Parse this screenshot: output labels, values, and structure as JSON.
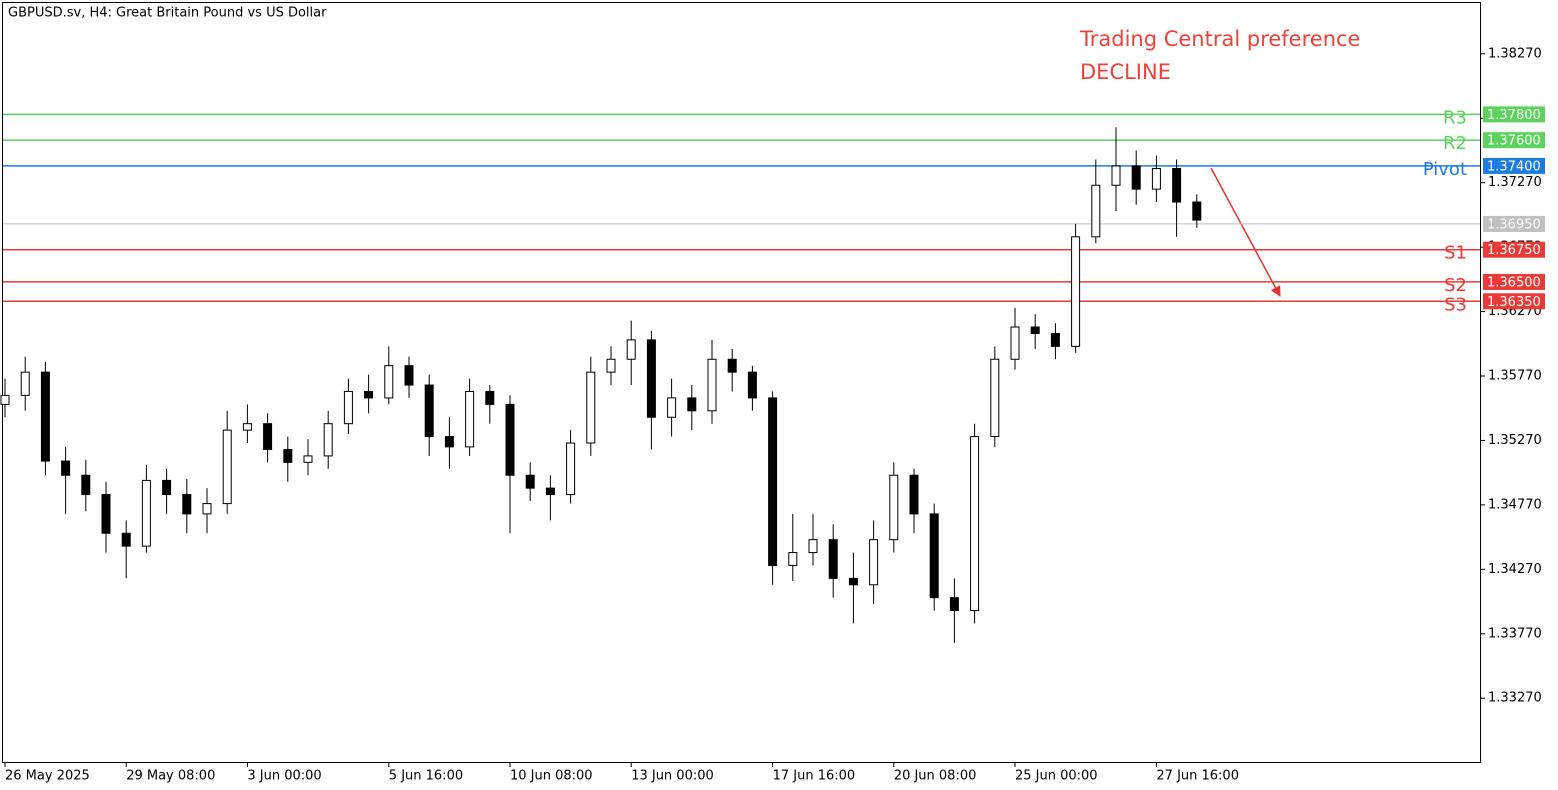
{
  "chart_data": {
    "type": "candlestick",
    "header": "GBPUSD.sv, H4:  Great Britain Pound vs US Dollar",
    "annotations": [
      "Trading Central preference",
      "DECLINE"
    ],
    "annotation_color": "#f0403a",
    "categories": [
      "26 May 2025",
      null,
      null,
      null,
      null,
      null,
      "29 May 08:00",
      null,
      null,
      null,
      null,
      null,
      "3 Jun 00:00",
      null,
      null,
      null,
      null,
      null,
      null,
      "5 Jun 16:00",
      null,
      null,
      null,
      null,
      null,
      "10 Jun 08:00",
      null,
      null,
      null,
      null,
      null,
      "13 Jun 00:00",
      null,
      null,
      null,
      null,
      null,
      null,
      "17 Jun 16:00",
      null,
      null,
      null,
      null,
      null,
      "20 Jun 08:00",
      null,
      null,
      null,
      null,
      null,
      "25 Jun 00:00",
      null,
      null,
      null,
      null,
      null,
      null,
      "27 Jun 16:00",
      null,
      null
    ],
    "open": [
      1.3555,
      1.3562,
      1.358,
      1.3511,
      1.35,
      1.3485,
      1.3455,
      1.3445,
      1.3496,
      1.3485,
      1.347,
      1.3478,
      1.3535,
      1.354,
      1.352,
      1.351,
      1.3515,
      1.354,
      1.3565,
      1.356,
      1.3585,
      1.357,
      1.353,
      1.3522,
      1.3565,
      1.3555,
      1.35,
      1.349,
      1.3485,
      1.3525,
      1.358,
      1.359,
      1.3605,
      1.3545,
      1.356,
      1.355,
      1.359,
      1.358,
      1.356,
      1.343,
      1.344,
      1.345,
      1.342,
      1.3415,
      1.345,
      1.35,
      1.347,
      1.3405,
      1.3395,
      1.353,
      1.359,
      1.3615,
      1.361,
      1.36,
      1.3685,
      1.3725,
      1.374,
      1.3722,
      1.3738,
      1.3712
    ],
    "high": [
      1.3575,
      1.3592,
      1.3588,
      1.3522,
      1.3512,
      1.3495,
      1.3465,
      1.3508,
      1.3505,
      1.3497,
      1.349,
      1.355,
      1.3555,
      1.3548,
      1.353,
      1.3528,
      1.355,
      1.3575,
      1.3578,
      1.36,
      1.3592,
      1.3578,
      1.3545,
      1.3575,
      1.357,
      1.3562,
      1.351,
      1.35,
      1.3535,
      1.3592,
      1.36,
      1.362,
      1.3612,
      1.3575,
      1.357,
      1.3605,
      1.3598,
      1.3585,
      1.3565,
      1.347,
      1.347,
      1.3462,
      1.344,
      1.3465,
      1.351,
      1.3505,
      1.3478,
      1.342,
      1.354,
      1.36,
      1.363,
      1.3625,
      1.3618,
      1.3695,
      1.3745,
      1.377,
      1.3752,
      1.3748,
      1.3745,
      1.3718
    ],
    "low": [
      1.3545,
      1.355,
      1.35,
      1.347,
      1.3472,
      1.344,
      1.342,
      1.344,
      1.347,
      1.3455,
      1.3455,
      1.347,
      1.3525,
      1.351,
      1.3495,
      1.35,
      1.3505,
      1.3532,
      1.3548,
      1.3555,
      1.356,
      1.3515,
      1.3505,
      1.3515,
      1.354,
      1.3455,
      1.348,
      1.3465,
      1.3478,
      1.3515,
      1.357,
      1.357,
      1.352,
      1.353,
      1.3535,
      1.354,
      1.3565,
      1.355,
      1.3415,
      1.3418,
      1.343,
      1.3405,
      1.3385,
      1.34,
      1.344,
      1.3455,
      1.3395,
      1.337,
      1.3385,
      1.3522,
      1.3582,
      1.3598,
      1.359,
      1.3595,
      1.368,
      1.3705,
      1.371,
      1.3712,
      1.3685,
      1.3692
    ],
    "close": [
      1.3562,
      1.358,
      1.3511,
      1.35,
      1.3485,
      1.3455,
      1.3445,
      1.3496,
      1.3485,
      1.347,
      1.3478,
      1.3535,
      1.354,
      1.352,
      1.351,
      1.3515,
      1.354,
      1.3565,
      1.356,
      1.3585,
      1.357,
      1.353,
      1.3522,
      1.3565,
      1.3555,
      1.35,
      1.349,
      1.3485,
      1.3525,
      1.358,
      1.359,
      1.3605,
      1.3545,
      1.356,
      1.355,
      1.359,
      1.358,
      1.356,
      1.343,
      1.344,
      1.345,
      1.342,
      1.3415,
      1.345,
      1.35,
      1.347,
      1.3405,
      1.3395,
      1.353,
      1.359,
      1.3615,
      1.361,
      1.36,
      1.3685,
      1.3725,
      1.374,
      1.3722,
      1.3738,
      1.3712,
      1.3698
    ],
    "ylim": [
      1.32775,
      1.38672
    ],
    "yticks": [
      {
        "value": 1.3327,
        "label": "1.33270"
      },
      {
        "value": 1.3377,
        "label": "1.33770"
      },
      {
        "value": 1.3427,
        "label": "1.34270"
      },
      {
        "value": 1.3477,
        "label": "1.34770"
      },
      {
        "value": 1.3527,
        "label": "1.35270"
      },
      {
        "value": 1.3577,
        "label": "1.35770"
      },
      {
        "value": 1.3627,
        "label": "1.36270"
      },
      {
        "value": 1.3677,
        "label": "1.36770"
      },
      {
        "value": 1.3727,
        "label": "1.37270"
      },
      {
        "value": 1.3777,
        "label": "1.37770"
      },
      {
        "value": 1.3827,
        "label": "1.38270"
      }
    ],
    "levels": [
      {
        "name": "R3",
        "price": {
          "value": 1.378,
          "label": "1.37800"
        },
        "color": "#5cd35c"
      },
      {
        "name": "R2",
        "price": {
          "value": 1.376,
          "label": "1.37600"
        },
        "color": "#5cd35c"
      },
      {
        "name": "Pivot",
        "price": {
          "value": 1.374,
          "label": "1.37400"
        },
        "color": "#1e7be0"
      },
      {
        "price": {
          "value": 1.3695,
          "label": "1.36950"
        },
        "color": "#c0c0c0"
      },
      {
        "name": "S1",
        "price": {
          "value": 1.3675,
          "label": "1.36750"
        },
        "color": "#ea3a35"
      },
      {
        "name": "S2",
        "price": {
          "value": 1.365,
          "label": "1.36500"
        },
        "color": "#ea3a35"
      },
      {
        "name": "S3",
        "price": {
          "value": 1.3635,
          "label": "1.36350"
        },
        "color": "#ea3a35"
      }
    ]
  }
}
